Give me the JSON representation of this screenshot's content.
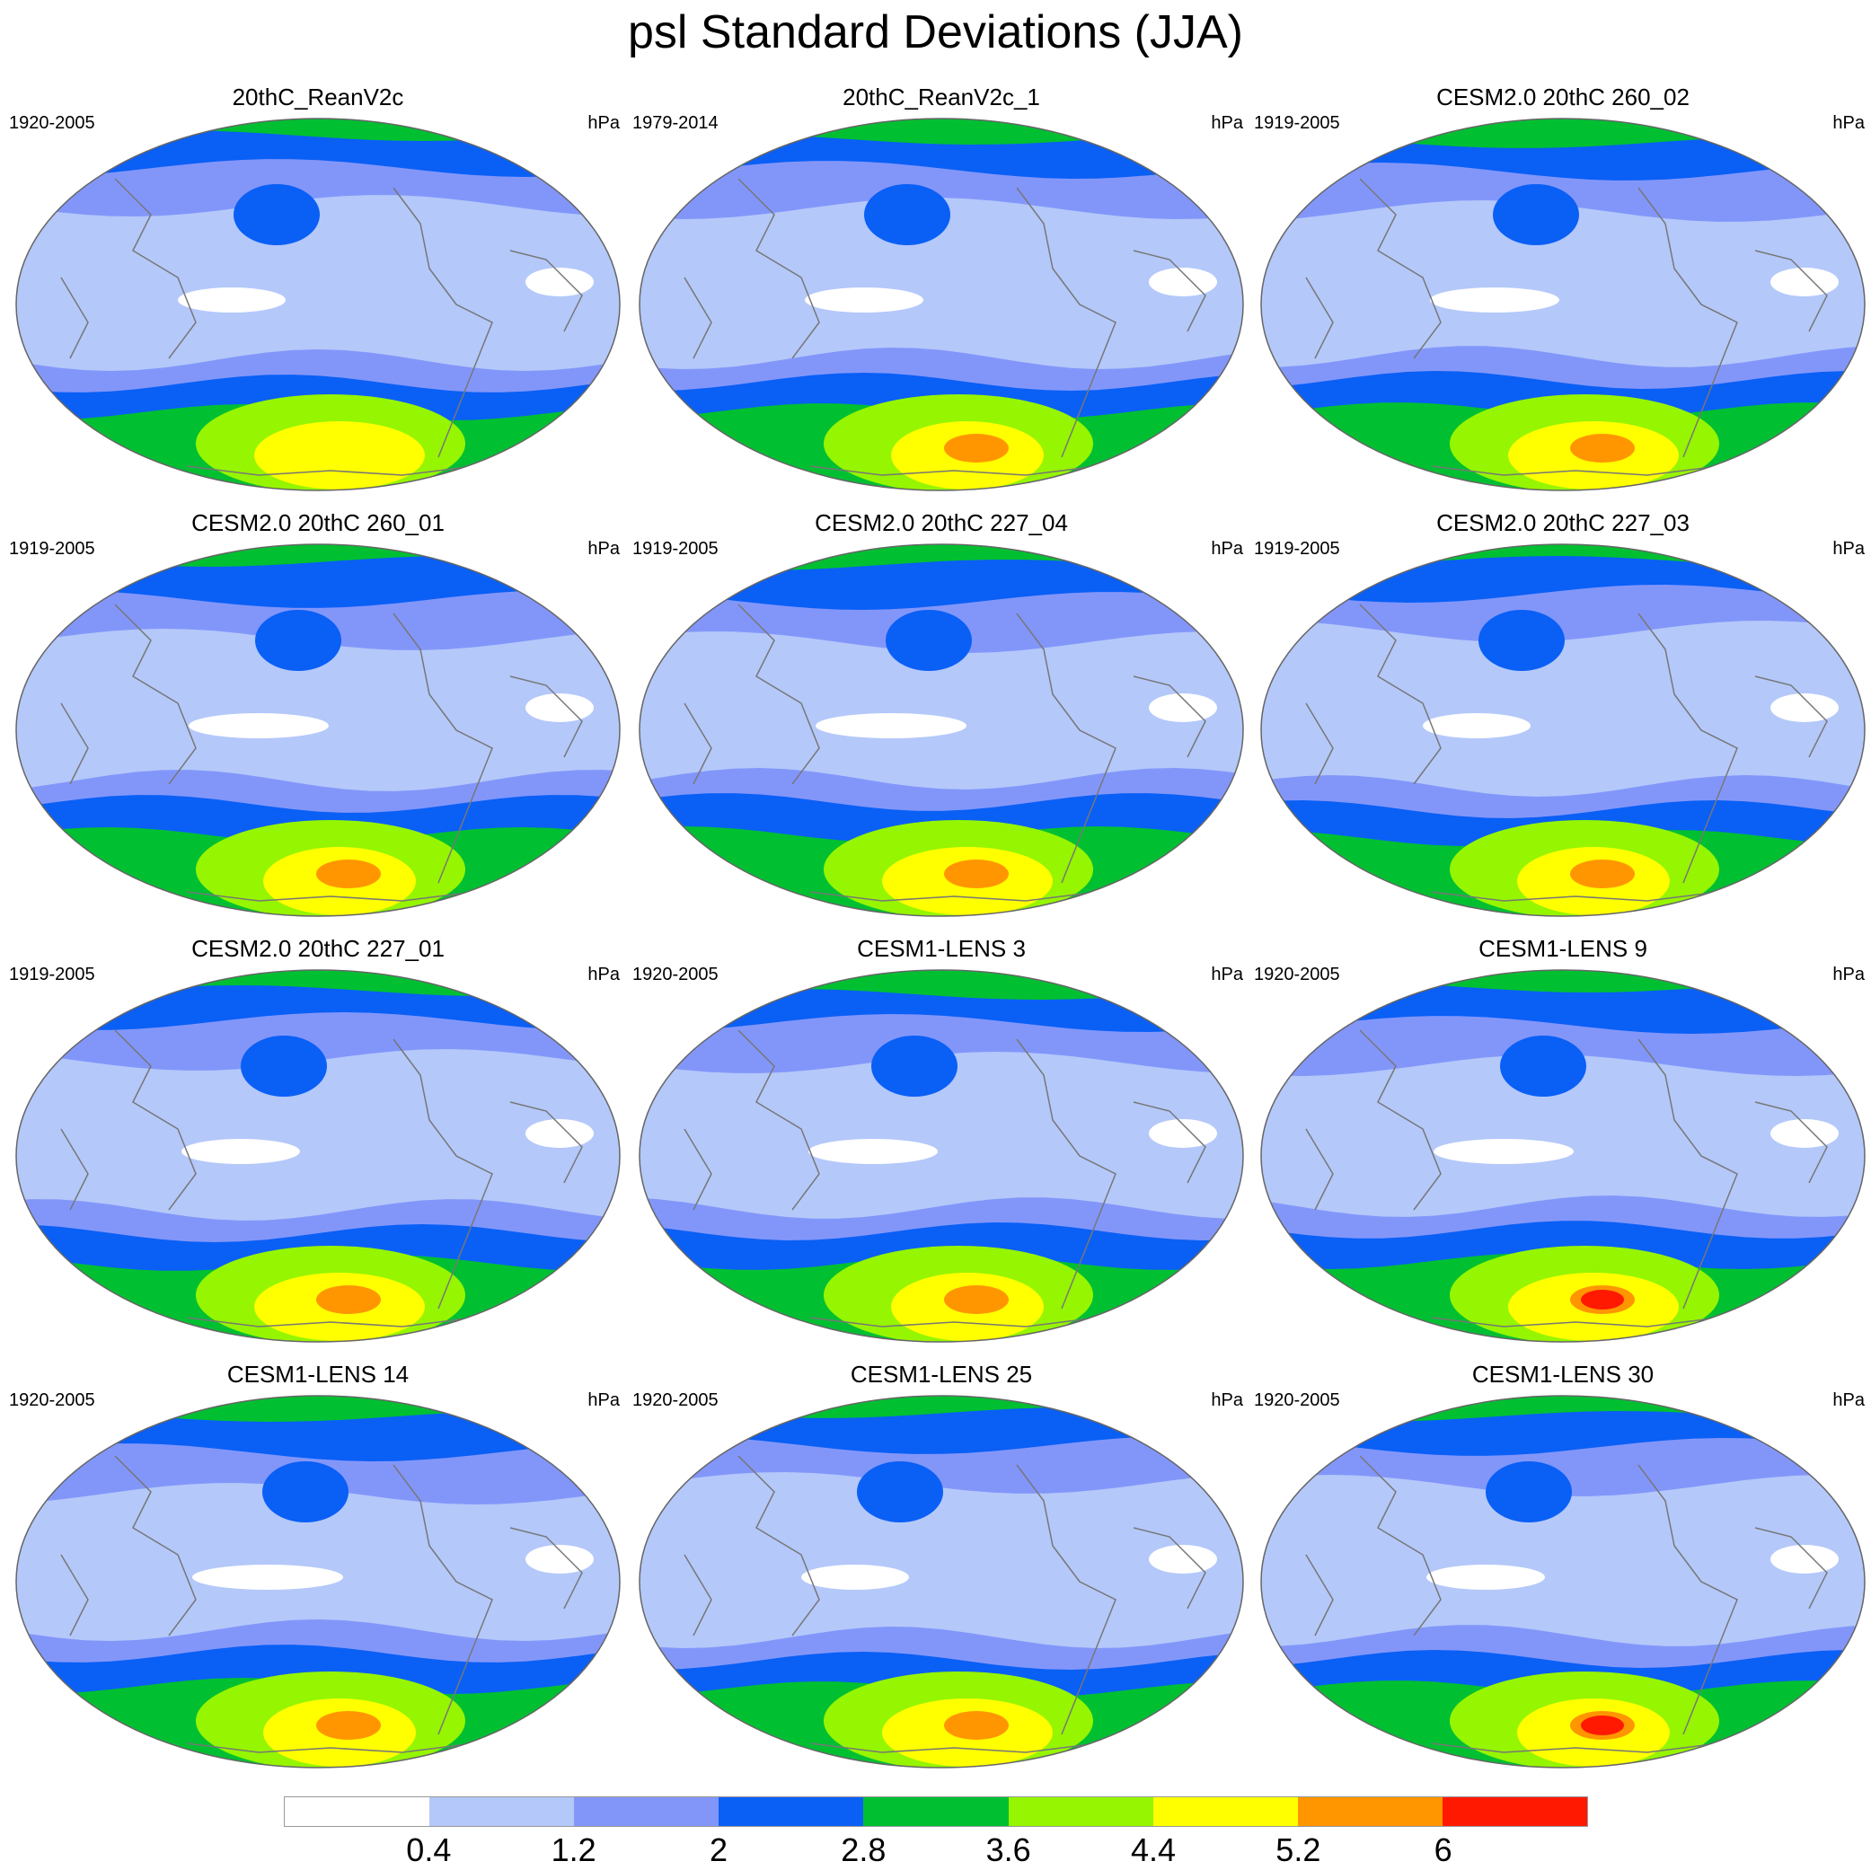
{
  "title": "psl Standard Deviations (JJA)",
  "units": "hPa",
  "colorbar": {
    "colors": [
      "#ffffff",
      "#b4c8fa",
      "#8296fa",
      "#0a5ff5",
      "#00c032",
      "#96f500",
      "#ffff00",
      "#ff9600",
      "#ff1900"
    ],
    "labels": [
      "0.4",
      "1.2",
      "2",
      "2.8",
      "3.6",
      "4.4",
      "5.2",
      "6"
    ]
  },
  "panels": [
    {
      "title": "20thC_ReanV2c",
      "period": "1920-2005",
      "units": "hPa"
    },
    {
      "title": "20thC_ReanV2c_1",
      "period": "1979-2014",
      "units": "hPa"
    },
    {
      "title": "CESM2.0 20thC 260_02",
      "period": "1919-2005",
      "units": "hPa"
    },
    {
      "title": "CESM2.0 20thC 260_01",
      "period": "1919-2005",
      "units": "hPa"
    },
    {
      "title": "CESM2.0 20thC 227_04",
      "period": "1919-2005",
      "units": "hPa"
    },
    {
      "title": "CESM2.0 20thC 227_03",
      "period": "1919-2005",
      "units": "hPa"
    },
    {
      "title": "CESM2.0 20thC 227_01",
      "period": "1919-2005",
      "units": "hPa"
    },
    {
      "title": "CESM1-LENS 3",
      "period": "1920-2005",
      "units": "hPa"
    },
    {
      "title": "CESM1-LENS 9",
      "period": "1920-2005",
      "units": "hPa"
    },
    {
      "title": "CESM1-LENS 14",
      "period": "1920-2005",
      "units": "hPa"
    },
    {
      "title": "CESM1-LENS 25",
      "period": "1920-2005",
      "units": "hPa"
    },
    {
      "title": "CESM1-LENS 30",
      "period": "1920-2005",
      "units": "hPa"
    }
  ]
}
